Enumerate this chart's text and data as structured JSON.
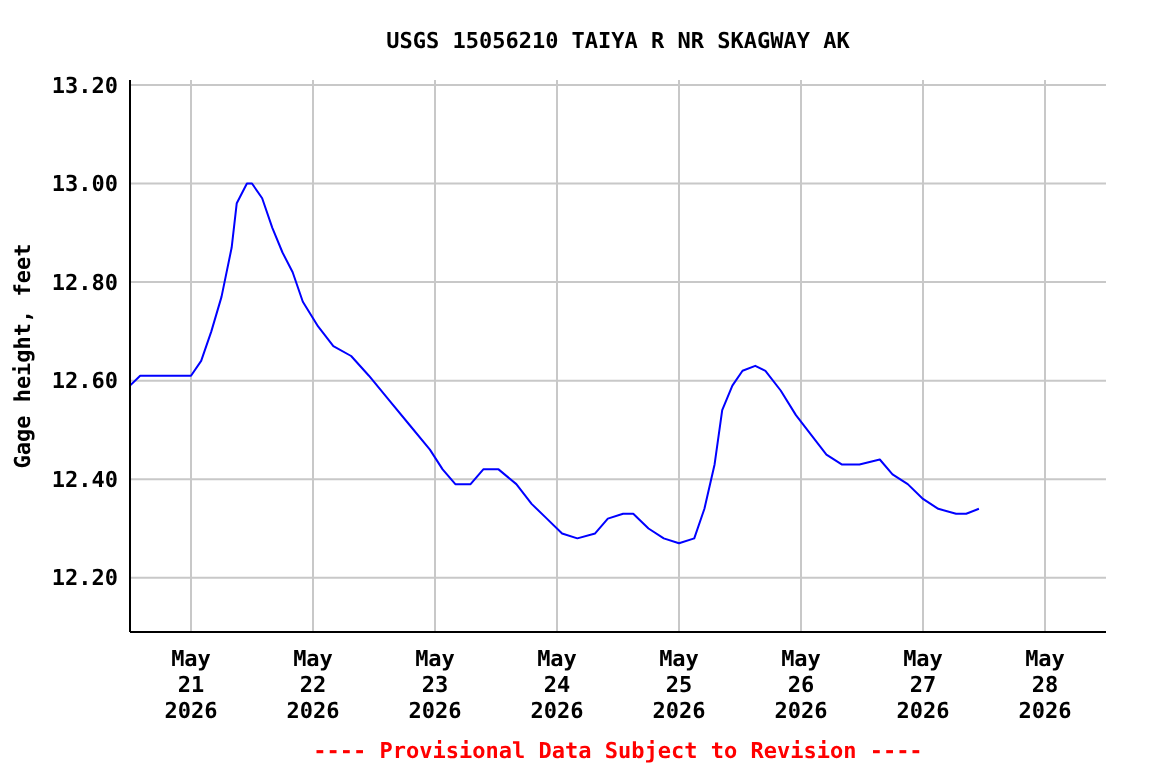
{
  "chart_data": {
    "type": "line",
    "title": "USGS 15056210 TAIYA R NR SKAGWAY AK",
    "ylabel": "Gage height, feet",
    "annotations": [
      "---- Provisional Data Subject to Revision ----"
    ],
    "x": [
      "2026-05-20T12:00",
      "2026-05-20T14:00",
      "2026-05-20T18:00",
      "2026-05-20T22:00",
      "2026-05-21T00:00",
      "2026-05-21T02:00",
      "2026-05-21T04:00",
      "2026-05-21T06:00",
      "2026-05-21T08:00",
      "2026-05-21T09:00",
      "2026-05-21T11:00",
      "2026-05-21T12:00",
      "2026-05-21T14:00",
      "2026-05-21T16:00",
      "2026-05-21T18:00",
      "2026-05-21T20:00",
      "2026-05-21T22:00",
      "2026-05-22T01:00",
      "2026-05-22T04:00",
      "2026-05-22T07:30",
      "2026-05-22T11:00",
      "2026-05-22T15:00",
      "2026-05-22T19:00",
      "2026-05-22T23:00",
      "2026-05-23T01:30",
      "2026-05-23T04:00",
      "2026-05-23T07:00",
      "2026-05-23T09:30",
      "2026-05-23T12:30",
      "2026-05-23T16:00",
      "2026-05-23T19:00",
      "2026-05-23T22:00",
      "2026-05-24T01:00",
      "2026-05-24T04:00",
      "2026-05-24T07:30",
      "2026-05-24T10:00",
      "2026-05-24T13:00",
      "2026-05-24T15:00",
      "2026-05-24T18:00",
      "2026-05-24T21:00",
      "2026-05-25T00:00",
      "2026-05-25T03:00",
      "2026-05-25T05:00",
      "2026-05-25T07:00",
      "2026-05-25T08:30",
      "2026-05-25T10:30",
      "2026-05-25T12:30",
      "2026-05-25T15:00",
      "2026-05-25T17:00",
      "2026-05-25T20:00",
      "2026-05-25T23:00",
      "2026-05-26T02:00",
      "2026-05-26T05:00",
      "2026-05-26T08:00",
      "2026-05-26T11:30",
      "2026-05-26T15:30",
      "2026-05-26T18:00",
      "2026-05-26T21:00",
      "2026-05-27T00:00",
      "2026-05-27T03:00",
      "2026-05-27T06:30",
      "2026-05-27T08:30",
      "2026-05-27T11:00"
    ],
    "series": [
      {
        "color": "#0000ff",
        "values": [
          12.59,
          12.61,
          12.61,
          12.61,
          12.61,
          12.64,
          12.7,
          12.77,
          12.87,
          12.96,
          13.0,
          13.0,
          12.97,
          12.91,
          12.86,
          12.82,
          12.76,
          12.71,
          12.67,
          12.65,
          12.61,
          12.56,
          12.51,
          12.46,
          12.42,
          12.39,
          12.39,
          12.42,
          12.42,
          12.39,
          12.35,
          12.32,
          12.29,
          12.28,
          12.29,
          12.32,
          12.33,
          12.33,
          12.3,
          12.28,
          12.27,
          12.28,
          12.34,
          12.43,
          12.54,
          12.59,
          12.62,
          12.63,
          12.62,
          12.58,
          12.53,
          12.49,
          12.45,
          12.43,
          12.43,
          12.44,
          12.41,
          12.39,
          12.36,
          12.34,
          12.33,
          12.33,
          12.34
        ]
      }
    ],
    "xlim": [
      "2026-05-20T12:00",
      "2026-05-28T12:00"
    ],
    "xticks": [
      {
        "value": "2026-05-21",
        "label": "May 21 2026"
      },
      {
        "value": "2026-05-22",
        "label": "May 22 2026"
      },
      {
        "value": "2026-05-23",
        "label": "May 23 2026"
      },
      {
        "value": "2026-05-24",
        "label": "May 24 2026"
      },
      {
        "value": "2026-05-25",
        "label": "May 25 2026"
      },
      {
        "value": "2026-05-26",
        "label": "May 26 2026"
      },
      {
        "value": "2026-05-27",
        "label": "May 27 2026"
      },
      {
        "value": "2026-05-28",
        "label": "May 28 2026"
      }
    ],
    "ylim": [
      12.09,
      13.21
    ],
    "yticks": [
      {
        "value": 12.2,
        "label": "12.20"
      },
      {
        "value": 12.4,
        "label": "12.40"
      },
      {
        "value": 12.6,
        "label": "12.60"
      },
      {
        "value": 12.8,
        "label": "12.80"
      },
      {
        "value": 13.0,
        "label": "13.00"
      },
      {
        "value": 13.2,
        "label": "13.20"
      }
    ],
    "grid": true,
    "marker": "none",
    "line_style": "solid"
  }
}
